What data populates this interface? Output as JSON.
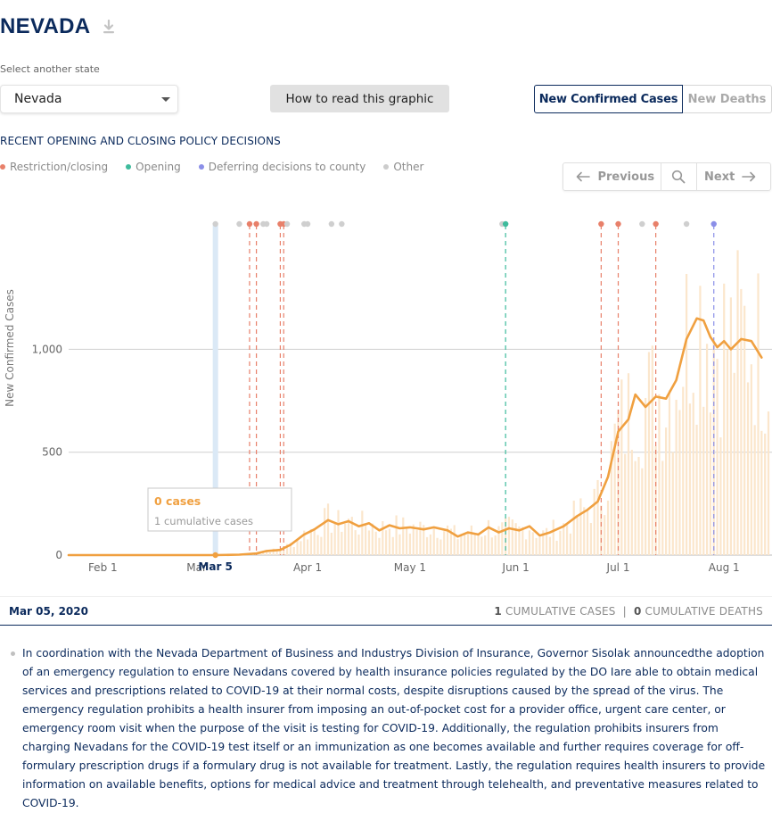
{
  "header": {
    "state_title": "NEVADA",
    "select_label": "Select another state",
    "selected_state": "Nevada",
    "how_to_button": "How to read this graphic",
    "toggle_active": "New Confirmed Cases",
    "toggle_inactive": "New Deaths"
  },
  "policy": {
    "title": "RECENT OPENING AND CLOSING POLICY DECISIONS",
    "legend": [
      {
        "label": "Restriction/closing",
        "color": "#e8806a"
      },
      {
        "label": "Opening",
        "color": "#3ebb9c"
      },
      {
        "label": "Deferring decisions to county",
        "color": "#8b8fe8"
      },
      {
        "label": "Other",
        "color": "#cccccc"
      }
    ]
  },
  "pager": {
    "previous": "Previous",
    "next": "Next"
  },
  "tooltip": {
    "cases": "0 cases",
    "cumulative": "1 cumulative cases"
  },
  "selected": {
    "date": "Mar 05, 2020",
    "cumulative_cases_count": "1",
    "cumulative_cases_label": "CUMULATIVE CASES",
    "separator": "|",
    "cumulative_deaths_count": "0",
    "cumulative_deaths_label": "CUMULATIVE DEATHS"
  },
  "detail_text": "In coordination with the Nevada Department of Business and Industrys Division of Insurance, Governor Sisolak announcedthe adoption of an emergency regulation to ensure Nevadans covered by health insurance policies regulated by the DO Iare able to obtain medical services and prescriptions related to COVID-19 at their normal costs, despite disruptions caused by the spread of the virus. The emergency regulation prohibits a health insurer from imposing an out-of-pocket cost for a provider office, urgent care center, or emergency room visit when the purpose of the visit is testing for COVID-19. Additionally, the regulation prohibits insurers from charging Nevadans for the COVID-19 test itself or an immunization as one becomes available and further requires coverage for off-formulary prescription drugs if a formulary drug is not available for treatment. Lastly, the regulation requires health insurers to provide information on available benefits, options for medical advice and treatment through telehealth, and preventative measures related to COVID-19.",
  "chart_data": {
    "type": "line",
    "ylabel": "New Confirmed Cases",
    "ylim": [
      0,
      1250
    ],
    "yticks": [
      0,
      500,
      1000
    ],
    "ytick_labels": [
      "0",
      "500",
      "1,000"
    ],
    "xlim": [
      "2020-01-22",
      "2020-08-14"
    ],
    "xticks": [
      {
        "date": "2020-02-01",
        "label": "Feb 1"
      },
      {
        "date": "2020-03-01",
        "label": "Mar 1"
      },
      {
        "date": "2020-04-01",
        "label": "Apr 1"
      },
      {
        "date": "2020-05-01",
        "label": "May 1"
      },
      {
        "date": "2020-06-01",
        "label": "Jun 1"
      },
      {
        "date": "2020-07-01",
        "label": "Jul 1"
      },
      {
        "date": "2020-08-01",
        "label": "Aug 1"
      }
    ],
    "highlight": {
      "date": "2020-03-05",
      "label": "Mar 5"
    },
    "line_color": "#f0a040",
    "bar_color": "#fbe6cc",
    "average": [
      {
        "date": "2020-01-22",
        "value": 0
      },
      {
        "date": "2020-03-05",
        "value": 0
      },
      {
        "date": "2020-03-12",
        "value": 2
      },
      {
        "date": "2020-03-17",
        "value": 8
      },
      {
        "date": "2020-03-20",
        "value": 20
      },
      {
        "date": "2020-03-24",
        "value": 25
      },
      {
        "date": "2020-03-27",
        "value": 50
      },
      {
        "date": "2020-03-31",
        "value": 100
      },
      {
        "date": "2020-04-03",
        "value": 125
      },
      {
        "date": "2020-04-07",
        "value": 170
      },
      {
        "date": "2020-04-10",
        "value": 150
      },
      {
        "date": "2020-04-13",
        "value": 165
      },
      {
        "date": "2020-04-16",
        "value": 140
      },
      {
        "date": "2020-04-19",
        "value": 155
      },
      {
        "date": "2020-04-22",
        "value": 120
      },
      {
        "date": "2020-04-25",
        "value": 145
      },
      {
        "date": "2020-04-28",
        "value": 130
      },
      {
        "date": "2020-05-01",
        "value": 135
      },
      {
        "date": "2020-05-05",
        "value": 125
      },
      {
        "date": "2020-05-08",
        "value": 135
      },
      {
        "date": "2020-05-12",
        "value": 120
      },
      {
        "date": "2020-05-15",
        "value": 90
      },
      {
        "date": "2020-05-18",
        "value": 110
      },
      {
        "date": "2020-05-21",
        "value": 100
      },
      {
        "date": "2020-05-24",
        "value": 135
      },
      {
        "date": "2020-05-27",
        "value": 110
      },
      {
        "date": "2020-05-30",
        "value": 130
      },
      {
        "date": "2020-06-02",
        "value": 120
      },
      {
        "date": "2020-06-05",
        "value": 140
      },
      {
        "date": "2020-06-08",
        "value": 95
      },
      {
        "date": "2020-06-11",
        "value": 110
      },
      {
        "date": "2020-06-15",
        "value": 140
      },
      {
        "date": "2020-06-19",
        "value": 190
      },
      {
        "date": "2020-06-22",
        "value": 220
      },
      {
        "date": "2020-06-25",
        "value": 260
      },
      {
        "date": "2020-06-28",
        "value": 380
      },
      {
        "date": "2020-07-01",
        "value": 600
      },
      {
        "date": "2020-07-04",
        "value": 660
      },
      {
        "date": "2020-07-06",
        "value": 780
      },
      {
        "date": "2020-07-09",
        "value": 720
      },
      {
        "date": "2020-07-12",
        "value": 770
      },
      {
        "date": "2020-07-15",
        "value": 760
      },
      {
        "date": "2020-07-18",
        "value": 850
      },
      {
        "date": "2020-07-21",
        "value": 1050
      },
      {
        "date": "2020-07-24",
        "value": 1150
      },
      {
        "date": "2020-07-26",
        "value": 1140
      },
      {
        "date": "2020-07-28",
        "value": 1060
      },
      {
        "date": "2020-07-30",
        "value": 1010
      },
      {
        "date": "2020-08-01",
        "value": 1040
      },
      {
        "date": "2020-08-03",
        "value": 1000
      },
      {
        "date": "2020-08-06",
        "value": 1050
      },
      {
        "date": "2020-08-09",
        "value": 1040
      },
      {
        "date": "2020-08-12",
        "value": 960
      }
    ],
    "policy_events": [
      {
        "date": "2020-03-05",
        "type": "other"
      },
      {
        "date": "2020-03-12",
        "type": "other"
      },
      {
        "date": "2020-03-15",
        "type": "restriction"
      },
      {
        "date": "2020-03-17",
        "type": "restriction"
      },
      {
        "date": "2020-03-19",
        "type": "other"
      },
      {
        "date": "2020-03-20",
        "type": "other"
      },
      {
        "date": "2020-03-24",
        "type": "restriction"
      },
      {
        "date": "2020-03-25",
        "type": "restriction"
      },
      {
        "date": "2020-03-26",
        "type": "other"
      },
      {
        "date": "2020-03-31",
        "type": "other"
      },
      {
        "date": "2020-04-01",
        "type": "other"
      },
      {
        "date": "2020-04-08",
        "type": "other"
      },
      {
        "date": "2020-04-11",
        "type": "other"
      },
      {
        "date": "2020-05-28",
        "type": "other"
      },
      {
        "date": "2020-05-29",
        "type": "opening"
      },
      {
        "date": "2020-06-26",
        "type": "restriction"
      },
      {
        "date": "2020-07-01",
        "type": "restriction"
      },
      {
        "date": "2020-07-08",
        "type": "other"
      },
      {
        "date": "2020-07-12",
        "type": "restriction"
      },
      {
        "date": "2020-07-21",
        "type": "other"
      },
      {
        "date": "2020-07-29",
        "type": "deferring"
      }
    ]
  }
}
